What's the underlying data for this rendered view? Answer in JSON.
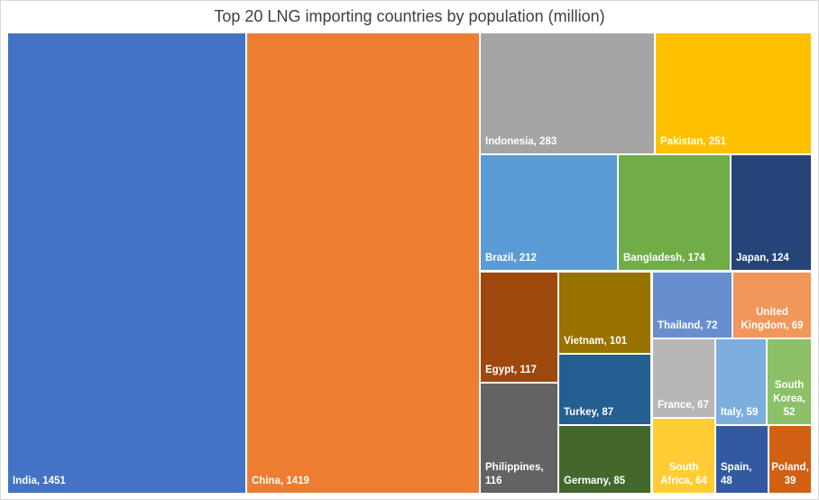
{
  "chart_data": {
    "type": "treemap",
    "title": "Top 20 LNG importing countries by population (million)",
    "series": [
      {
        "name": "India",
        "value": 1451,
        "color": "#4472C4",
        "label": "India, 1451"
      },
      {
        "name": "China",
        "value": 1419,
        "color": "#ED7D31",
        "label": "China, 1419"
      },
      {
        "name": "Indonesia",
        "value": 283,
        "color": "#A5A5A5",
        "label": "Indonesia, 283"
      },
      {
        "name": "Pakistan",
        "value": 251,
        "color": "#FFC000",
        "label": "Pakistan, 251"
      },
      {
        "name": "Brazil",
        "value": 212,
        "color": "#5B9BD5",
        "label": "Brazil, 212"
      },
      {
        "name": "Bangladesh",
        "value": 174,
        "color": "#70AD47",
        "label": "Bangladesh, 174"
      },
      {
        "name": "Japan",
        "value": 124,
        "color": "#264478",
        "label": "Japan, 124"
      },
      {
        "name": "Egypt",
        "value": 117,
        "color": "#9E480E",
        "label": "Egypt, 117"
      },
      {
        "name": "Philippines",
        "value": 116,
        "color": "#636363",
        "label": "Philippines, 116"
      },
      {
        "name": "Vietnam",
        "value": 101,
        "color": "#997300",
        "label": "Vietnam, 101"
      },
      {
        "name": "Turkey",
        "value": 87,
        "color": "#255E91",
        "label": "Turkey, 87"
      },
      {
        "name": "Germany",
        "value": 85,
        "color": "#43682B",
        "label": "Germany, 85"
      },
      {
        "name": "Thailand",
        "value": 72,
        "color": "#698ED0",
        "label": "Thailand, 72"
      },
      {
        "name": "United Kingdom",
        "value": 69,
        "color": "#F1975A",
        "label": "United Kingdom, 69"
      },
      {
        "name": "France",
        "value": 67,
        "color": "#B7B7B7",
        "label": "France, 67"
      },
      {
        "name": "South Africa",
        "value": 64,
        "color": "#FFCD33",
        "label": "South Africa, 64"
      },
      {
        "name": "Italy",
        "value": 59,
        "color": "#7CAFDD",
        "label": "Italy, 59"
      },
      {
        "name": "South Korea",
        "value": 52,
        "color": "#8CC168",
        "label": "South Korea, 52"
      },
      {
        "name": "Spain",
        "value": 48,
        "color": "#335AA1",
        "label": "Spain, 48"
      },
      {
        "name": "Poland",
        "value": 39,
        "color": "#D26012",
        "label": "Poland, 39"
      }
    ]
  }
}
